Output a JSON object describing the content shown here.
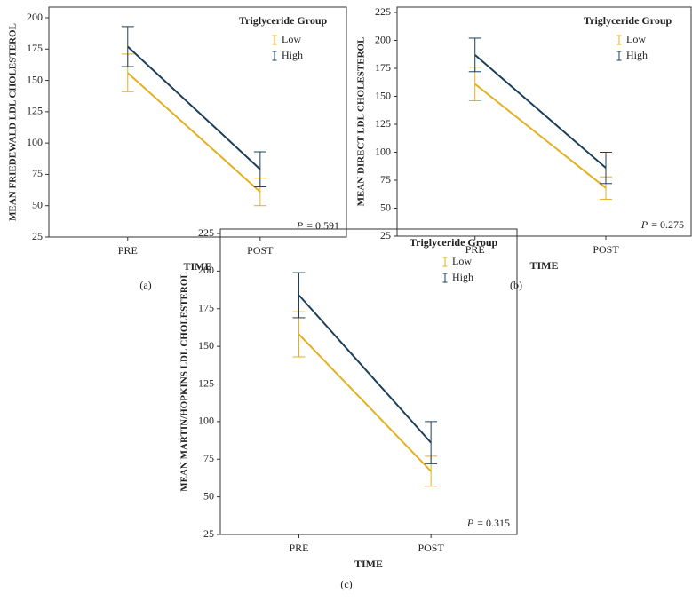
{
  "chart_data": [
    {
      "type": "line",
      "caption": "(a)",
      "xlabel": "TIME",
      "ylabel": "MEAN FRIEDEWALD LDL CHOLESTEROL",
      "categories": [
        "PRE",
        "POST"
      ],
      "ylim": [
        25,
        200
      ],
      "yticks": [
        25,
        50,
        75,
        100,
        125,
        150,
        175,
        200
      ],
      "legend_title": "Triglyceride Group",
      "legend": "upper right",
      "annotation": {
        "symbol": "P",
        "text": "= 0.591"
      },
      "series": [
        {
          "name": "Low",
          "color": "#e3b020",
          "values": [
            156,
            61
          ],
          "errors": [
            15,
            11
          ]
        },
        {
          "name": "High",
          "color": "#1c3f5a",
          "values": [
            177,
            79
          ],
          "errors": [
            16,
            14
          ]
        }
      ]
    },
    {
      "type": "line",
      "caption": "(b)",
      "xlabel": "TIME",
      "ylabel": "MEAN DIRECT LDL CHOLESTEROL",
      "categories": [
        "PRE",
        "POST"
      ],
      "ylim": [
        25,
        225
      ],
      "yticks": [
        25,
        50,
        75,
        100,
        125,
        150,
        175,
        200,
        225
      ],
      "legend_title": "Triglyceride Group",
      "legend": "upper right",
      "annotation": {
        "symbol": "P",
        "text": "= 0.275"
      },
      "series": [
        {
          "name": "Low",
          "color": "#e3b020",
          "values": [
            161,
            68
          ],
          "errors": [
            15,
            10
          ]
        },
        {
          "name": "High",
          "color": "#1c3f5a",
          "values": [
            187,
            86
          ],
          "errors": [
            15,
            14
          ]
        }
      ]
    },
    {
      "type": "line",
      "caption": "(c)",
      "xlabel": "TIME",
      "ylabel": "MEAN MARTIN/HOPKINS LDL CHOLESTEROL",
      "categories": [
        "PRE",
        "POST"
      ],
      "ylim": [
        25,
        225
      ],
      "yticks": [
        25,
        50,
        75,
        100,
        125,
        150,
        175,
        200,
        225
      ],
      "legend_title": "Triglyceride Group",
      "legend": "upper right",
      "annotation": {
        "symbol": "P",
        "text": "= 0.315"
      },
      "series": [
        {
          "name": "Low",
          "color": "#e3b020",
          "values": [
            158,
            67
          ],
          "errors": [
            15,
            10
          ]
        },
        {
          "name": "High",
          "color": "#1c3f5a",
          "values": [
            184,
            86
          ],
          "errors": [
            15,
            14
          ]
        }
      ]
    }
  ]
}
